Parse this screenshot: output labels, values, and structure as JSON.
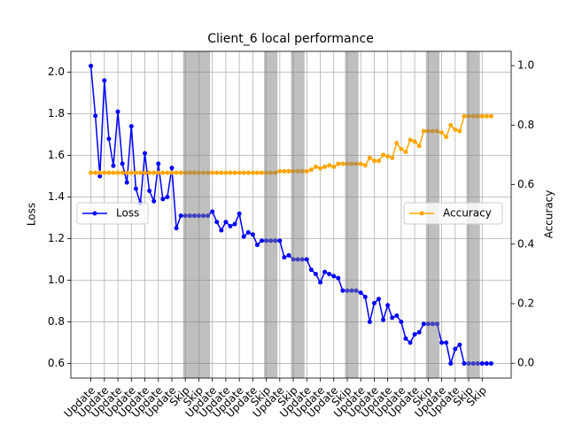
{
  "chart_data": {
    "type": "line",
    "title": "Client_6 local performance",
    "ylabel": "Loss",
    "y2label": "Accuracy",
    "x": [
      0,
      1,
      2,
      3,
      4,
      5,
      6,
      7,
      8,
      9,
      10,
      11,
      12,
      13,
      14,
      15,
      16,
      17,
      18,
      19,
      20,
      21,
      22,
      23,
      24,
      25,
      26,
      27,
      28,
      29,
      30,
      31,
      32,
      33,
      34,
      35,
      36,
      37,
      38,
      39,
      40,
      41,
      42,
      43,
      44,
      45,
      46,
      47,
      48,
      49,
      50,
      51,
      52,
      53,
      54,
      55,
      56,
      57,
      58,
      59,
      60,
      61,
      62,
      63,
      64,
      65,
      66,
      67,
      68,
      69,
      70,
      71,
      72,
      73,
      74,
      75,
      76,
      77,
      78,
      79,
      80,
      81,
      82,
      83,
      84,
      85,
      86,
      87,
      88,
      89
    ],
    "series": [
      {
        "name": "Loss",
        "color": "#0000ff",
        "values": [
          2.03,
          1.79,
          1.5,
          1.96,
          1.68,
          1.55,
          1.81,
          1.56,
          1.47,
          1.74,
          1.44,
          1.37,
          1.61,
          1.43,
          1.38,
          1.56,
          1.39,
          1.4,
          1.54,
          1.25,
          1.31,
          1.31,
          1.31,
          1.31,
          1.31,
          1.31,
          1.31,
          1.33,
          1.28,
          1.24,
          1.28,
          1.26,
          1.27,
          1.32,
          1.21,
          1.23,
          1.22,
          1.17,
          1.19,
          1.19,
          1.19,
          1.19,
          1.19,
          1.11,
          1.12,
          1.1,
          1.1,
          1.1,
          1.1,
          1.05,
          1.03,
          0.99,
          1.04,
          1.03,
          1.02,
          1.01,
          0.95,
          0.95,
          0.95,
          0.95,
          0.94,
          0.92,
          0.8,
          0.89,
          0.91,
          0.81,
          0.88,
          0.82,
          0.83,
          0.8,
          0.72,
          0.7,
          0.74,
          0.75,
          0.79,
          0.79,
          0.79,
          0.79,
          0.7,
          0.7,
          0.6,
          0.67,
          0.69,
          0.6,
          0.6,
          0.6,
          0.6,
          0.6,
          0.6,
          0.6
        ]
      },
      {
        "name": "Accuracy",
        "color": "#ffa500",
        "axis": "y2",
        "values": [
          0.64,
          0.64,
          0.64,
          0.64,
          0.64,
          0.64,
          0.64,
          0.64,
          0.64,
          0.64,
          0.64,
          0.64,
          0.64,
          0.64,
          0.64,
          0.64,
          0.64,
          0.64,
          0.64,
          0.64,
          0.64,
          0.64,
          0.64,
          0.64,
          0.64,
          0.64,
          0.64,
          0.64,
          0.64,
          0.64,
          0.64,
          0.64,
          0.64,
          0.64,
          0.64,
          0.64,
          0.64,
          0.64,
          0.64,
          0.64,
          0.64,
          0.64,
          0.645,
          0.645,
          0.645,
          0.645,
          0.645,
          0.645,
          0.645,
          0.65,
          0.66,
          0.655,
          0.66,
          0.665,
          0.66,
          0.67,
          0.67,
          0.67,
          0.67,
          0.67,
          0.67,
          0.665,
          0.69,
          0.68,
          0.68,
          0.7,
          0.695,
          0.69,
          0.74,
          0.72,
          0.71,
          0.75,
          0.745,
          0.73,
          0.78,
          0.78,
          0.78,
          0.78,
          0.775,
          0.76,
          0.8,
          0.785,
          0.78,
          0.83,
          0.83,
          0.83,
          0.83,
          0.83,
          0.83,
          0.83
        ]
      }
    ],
    "shaded": [
      [
        20.5,
        26.5
      ],
      [
        38.5,
        41.5
      ],
      [
        44.5,
        47.5
      ],
      [
        56.5,
        59.5
      ],
      [
        74.5,
        77.5
      ],
      [
        83.5,
        86.5
      ]
    ],
    "xlim": [
      -4.45,
      93.45
    ],
    "xticks": [
      {
        "value": 0,
        "label": "Update"
      },
      {
        "value": 3,
        "label": "Update"
      },
      {
        "value": 6,
        "label": "Update"
      },
      {
        "value": 9,
        "label": "Update"
      },
      {
        "value": 12,
        "label": "Update"
      },
      {
        "value": 15,
        "label": "Update"
      },
      {
        "value": 18,
        "label": "Update"
      },
      {
        "value": 21,
        "label": "Skip"
      },
      {
        "value": 24,
        "label": "Skip"
      },
      {
        "value": 27,
        "label": "Update"
      },
      {
        "value": 30,
        "label": "Update"
      },
      {
        "value": 33,
        "label": "Update"
      },
      {
        "value": 36,
        "label": "Update"
      },
      {
        "value": 39,
        "label": "Skip"
      },
      {
        "value": 42,
        "label": "Update"
      },
      {
        "value": 45,
        "label": "Skip"
      },
      {
        "value": 48,
        "label": "Update"
      },
      {
        "value": 51,
        "label": "Update"
      },
      {
        "value": 54,
        "label": "Update"
      },
      {
        "value": 57,
        "label": "Skip"
      },
      {
        "value": 60,
        "label": "Update"
      },
      {
        "value": 63,
        "label": "Update"
      },
      {
        "value": 66,
        "label": "Update"
      },
      {
        "value": 69,
        "label": "Update"
      },
      {
        "value": 72,
        "label": "Update"
      },
      {
        "value": 75,
        "label": "Skip"
      },
      {
        "value": 78,
        "label": "Update"
      },
      {
        "value": 81,
        "label": "Update"
      },
      {
        "value": 84,
        "label": "Skip"
      },
      {
        "value": 87,
        "label": "Skip"
      }
    ],
    "ylim": [
      0.53,
      2.1
    ],
    "yticks": [
      0.6,
      0.8,
      {
        "value": 1.0,
        "label": "1.0"
      },
      1.2,
      1.4,
      1.6,
      1.8,
      {
        "value": 2.0,
        "label": "2.0"
      }
    ],
    "y2lim": [
      -0.05,
      1.048
    ],
    "y2ticks": [
      {
        "value": 0.0,
        "label": "0.0"
      },
      0.2,
      0.4,
      0.6,
      0.8,
      {
        "value": 1.0,
        "label": "1.0"
      }
    ],
    "grid": true
  }
}
